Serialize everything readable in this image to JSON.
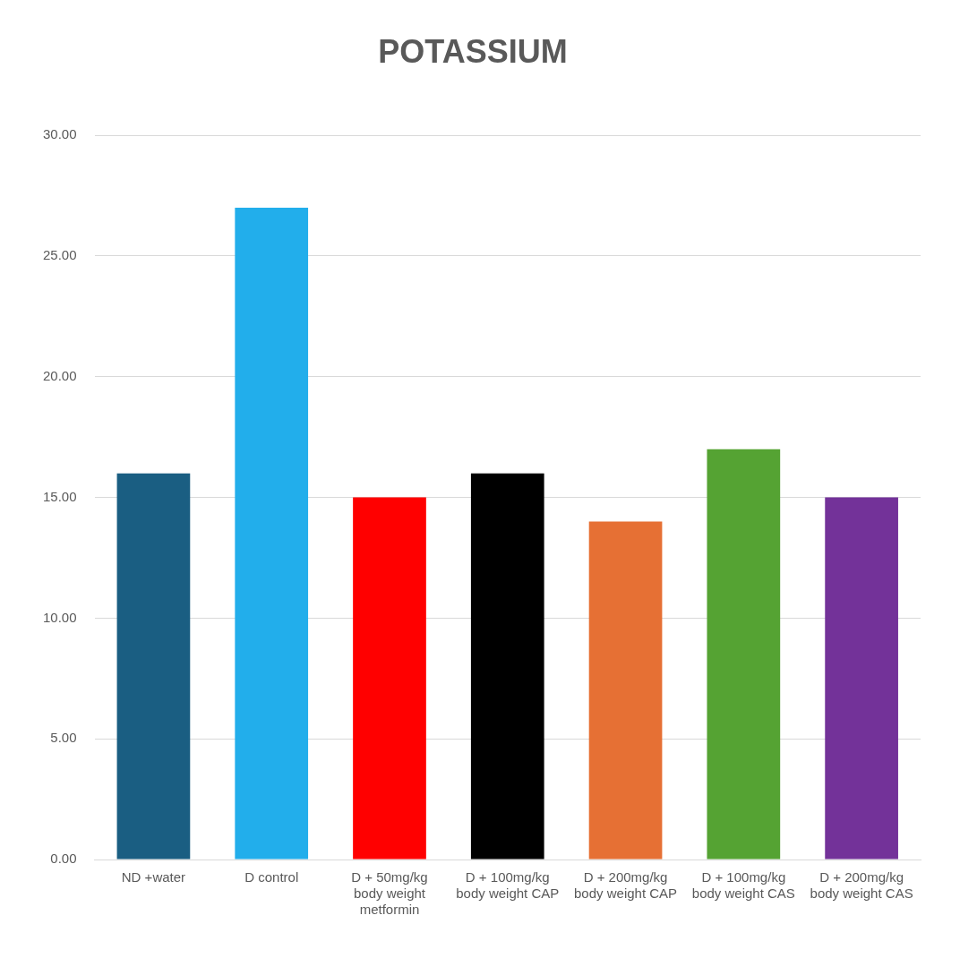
{
  "chart_data": {
    "type": "bar",
    "title": "POTASSIUM",
    "categories": [
      "ND +water",
      "D control",
      "D + 50mg/kg body weight metformin",
      "D + 100mg/kg body weight CAP",
      "D + 200mg/kg body weight CAP",
      "D + 100mg/kg body weight CAS",
      "D + 200mg/kg body weight CAS"
    ],
    "values": [
      16,
      27,
      15,
      16,
      14,
      17,
      15
    ],
    "colors": [
      "#1a5e82",
      "#22aeeb",
      "#ff0000",
      "#000000",
      "#e67034",
      "#55a333",
      "#733299"
    ],
    "ylim": [
      0,
      30
    ],
    "yticks": [
      {
        "value": 0,
        "label": "0.00"
      },
      {
        "value": 5,
        "label": "5.00"
      },
      {
        "value": 10,
        "label": "10.00"
      },
      {
        "value": 15,
        "label": "15.00"
      },
      {
        "value": 20,
        "label": "20.00"
      },
      {
        "value": 25,
        "label": "25.00"
      },
      {
        "value": 30,
        "label": "30.00"
      }
    ],
    "grid": "y",
    "legend": false
  }
}
